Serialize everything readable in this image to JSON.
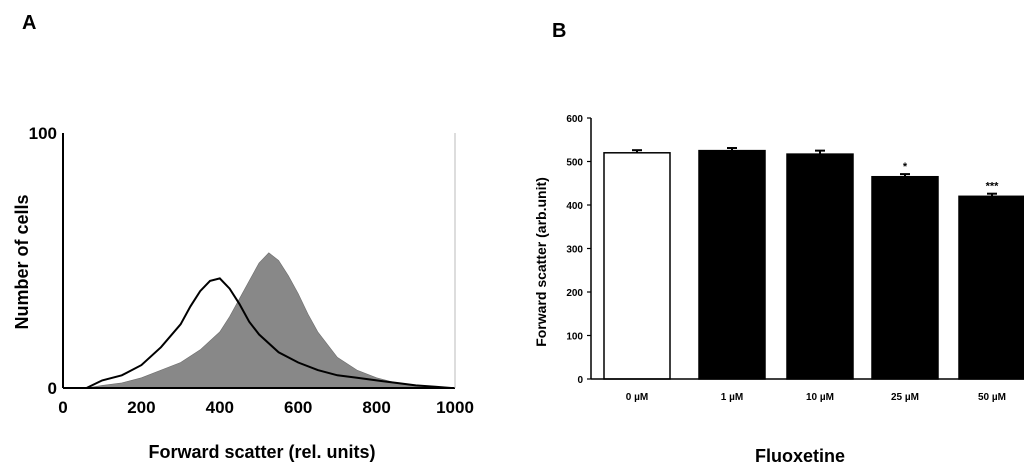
{
  "panels": {
    "a_label": "A",
    "b_label": "B"
  },
  "chart_data": [
    {
      "type": "area",
      "panel": "A",
      "xlabel": "Forward scatter (rel. units)",
      "ylabel": "Number of cells",
      "xlim": [
        0,
        1000
      ],
      "ylim": [
        0,
        100
      ],
      "x_ticks": [
        "0",
        "200",
        "400",
        "600",
        "800",
        "1000"
      ],
      "y_ticks": [
        "0",
        "100"
      ],
      "series": [
        {
          "style": "filled",
          "color": "#888888",
          "x": [
            60,
            100,
            150,
            200,
            250,
            300,
            350,
            400,
            425,
            450,
            475,
            500,
            525,
            550,
            575,
            600,
            625,
            650,
            700,
            750,
            800,
            850,
            900,
            950,
            990
          ],
          "y": [
            0,
            1,
            2,
            4,
            7,
            10,
            15,
            22,
            28,
            35,
            42,
            49,
            53,
            50,
            44,
            37,
            29,
            22,
            12,
            7,
            4,
            2,
            1,
            0.5,
            0
          ]
        },
        {
          "style": "line",
          "color": "#000000",
          "x": [
            60,
            100,
            150,
            200,
            250,
            300,
            325,
            350,
            375,
            400,
            425,
            450,
            475,
            500,
            550,
            600,
            650,
            700,
            750,
            800,
            850,
            900,
            950,
            990
          ],
          "y": [
            0,
            3,
            5,
            9,
            16,
            25,
            32,
            38,
            42,
            43,
            39,
            33,
            26,
            21,
            14,
            10,
            7,
            5,
            4,
            3,
            2,
            1,
            0.5,
            0
          ]
        }
      ]
    },
    {
      "type": "bar",
      "panel": "B",
      "xlabel": "Fluoxetine",
      "ylabel": "Forward scatter (arb.unit)",
      "ylim": [
        0,
        600
      ],
      "y_ticks": [
        "0",
        "100",
        "200",
        "300",
        "400",
        "500",
        "600"
      ],
      "categories": [
        "0 µM",
        "1 µM",
        "10 µM",
        "25 µM",
        "50 µM"
      ],
      "values": [
        520,
        525,
        517,
        465,
        420
      ],
      "errors": [
        6,
        6,
        8,
        6,
        6
      ],
      "fills": [
        "#ffffff",
        "#000000",
        "#000000",
        "#000000",
        "#000000"
      ],
      "annotations": [
        "",
        "",
        "",
        "*",
        "***"
      ]
    }
  ]
}
